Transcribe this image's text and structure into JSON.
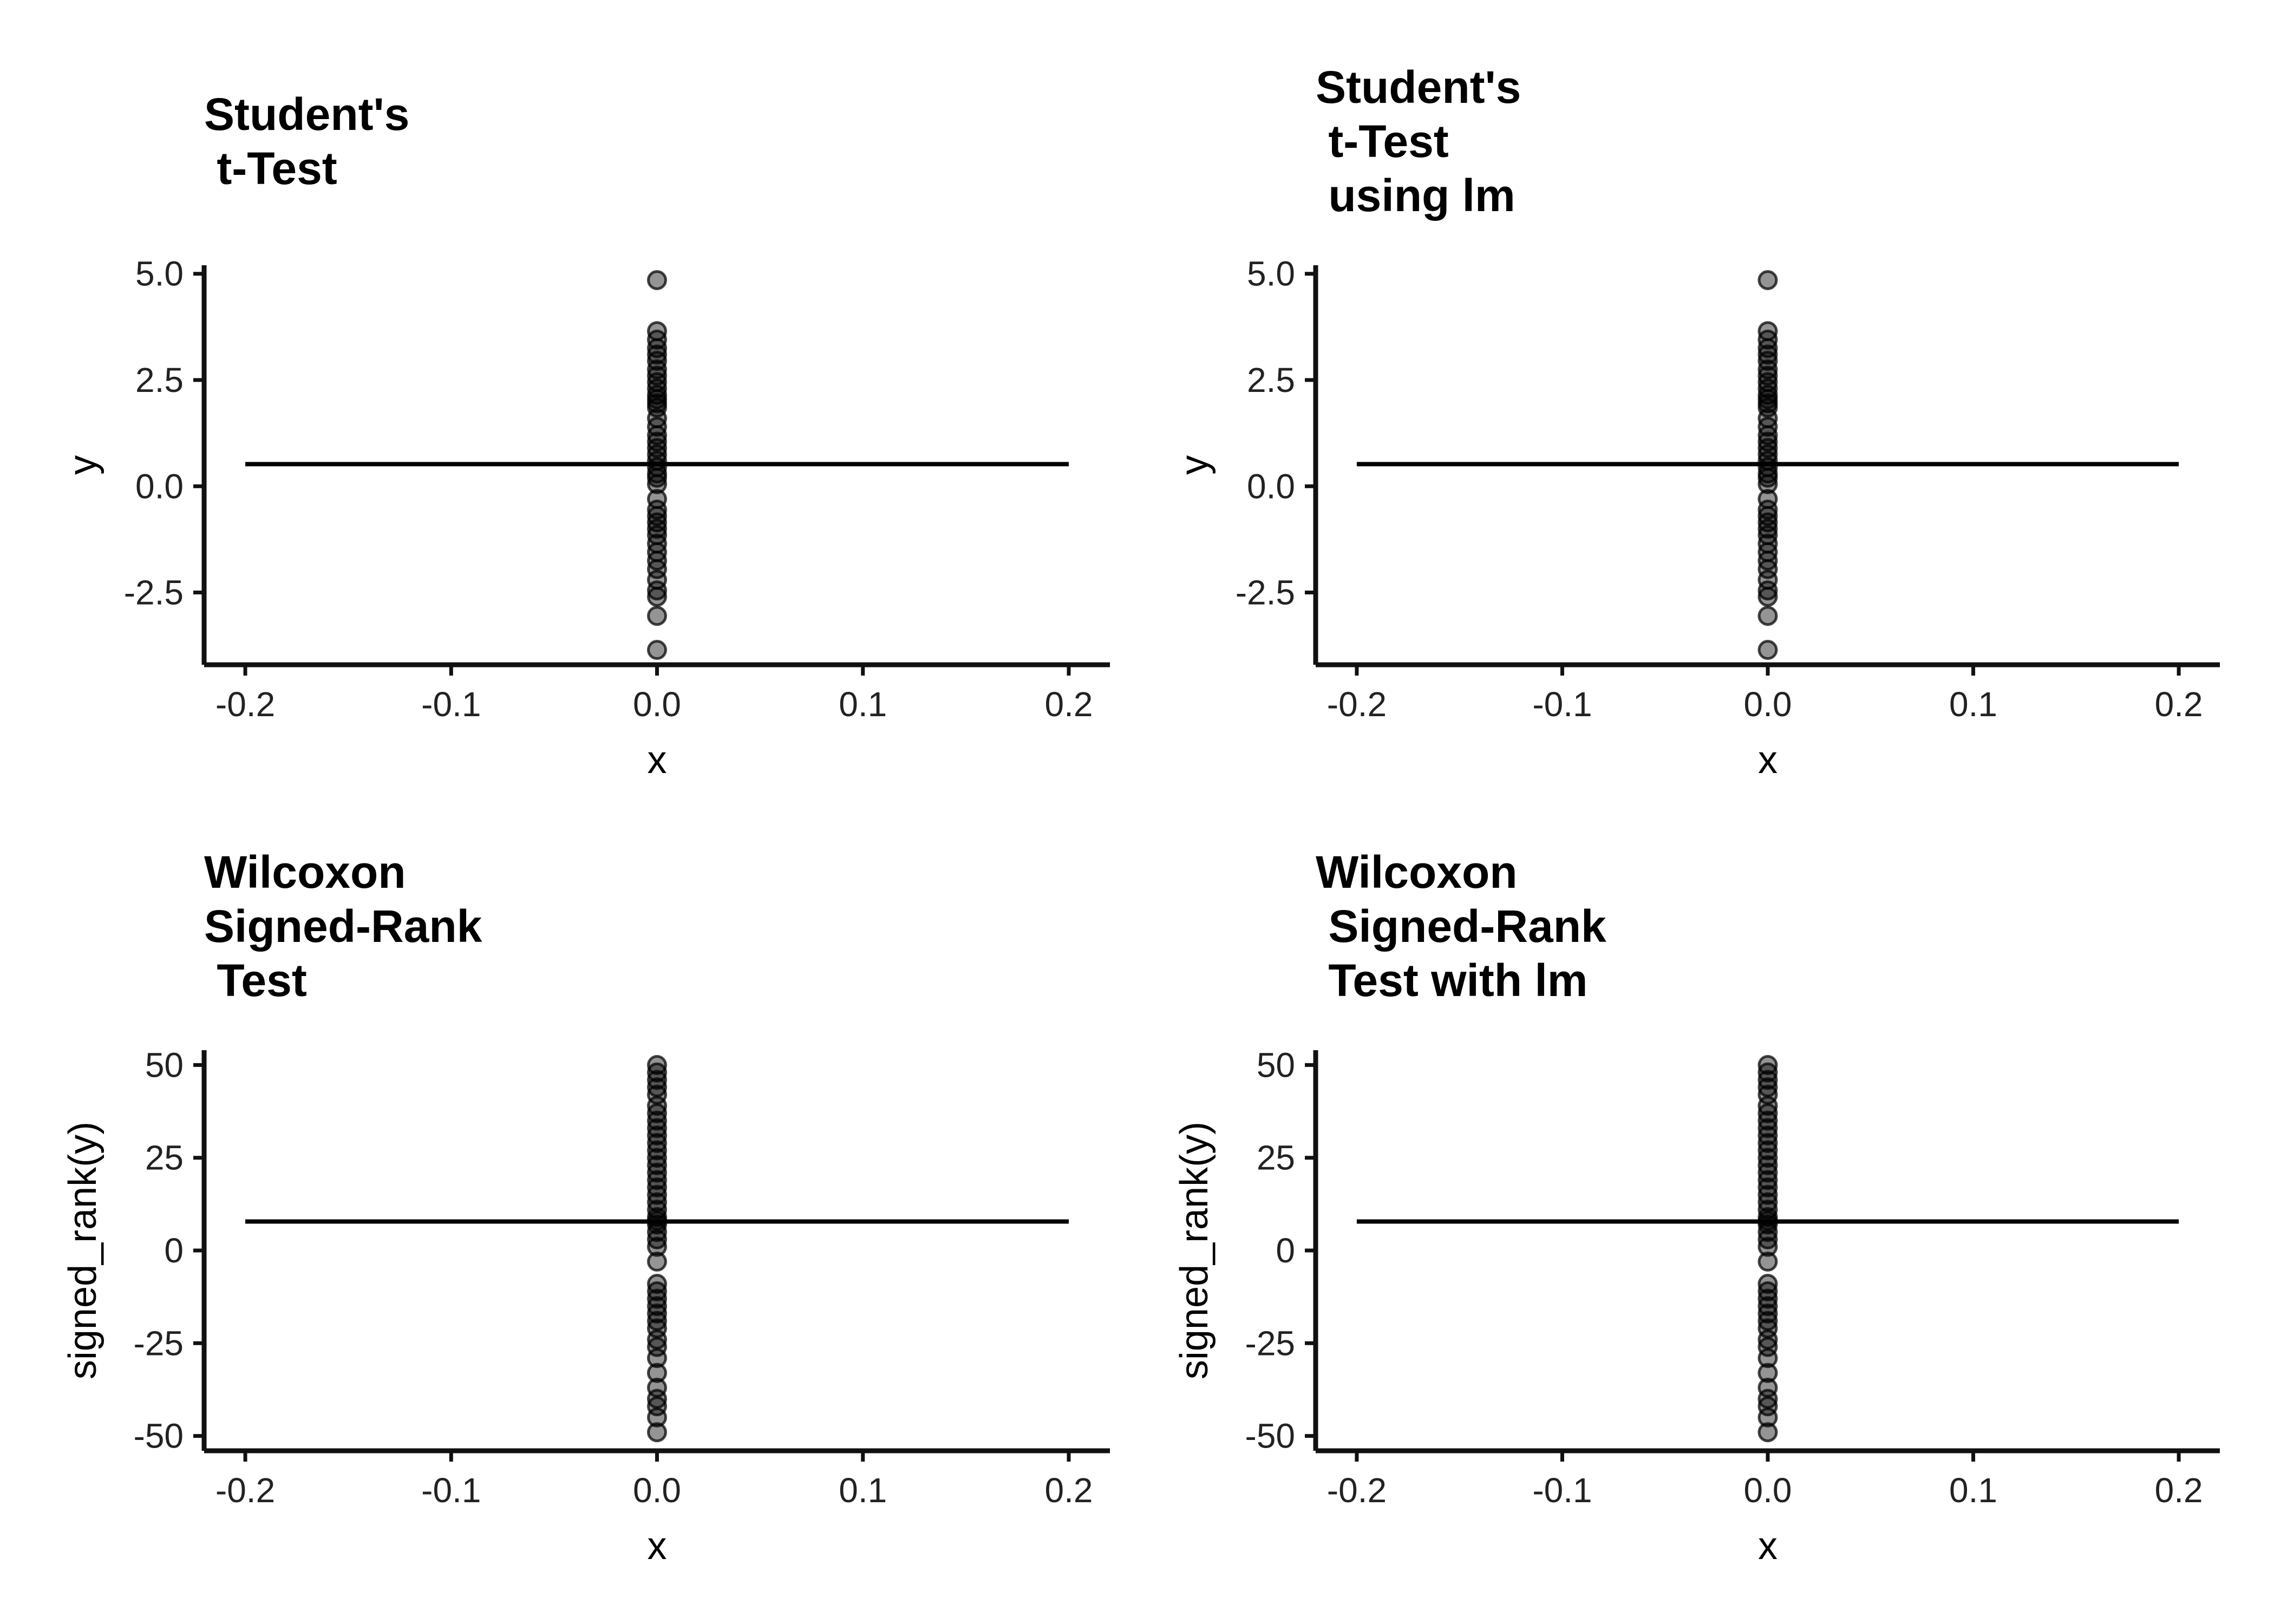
{
  "chart_data": [
    {
      "type": "scatter",
      "title": [
        "Student's",
        " t-Test"
      ],
      "xlabel": "x",
      "ylabel": "y",
      "xlim": [
        -0.22,
        0.22
      ],
      "ylim": [
        -4.2,
        5.2
      ],
      "xticks": [
        -0.2,
        -0.1,
        0.0,
        0.1,
        0.2
      ],
      "xtick_labels": [
        "-0.2",
        "-0.1",
        "0.0",
        "0.1",
        "0.2"
      ],
      "yticks": [
        -2.5,
        0.0,
        2.5,
        5.0
      ],
      "ytick_labels": [
        "-2.5",
        "0.0",
        "2.5",
        "5.0"
      ],
      "points": {
        "x": 0.0,
        "y": [
          4.85,
          3.65,
          3.45,
          3.25,
          3.1,
          2.95,
          2.75,
          2.6,
          2.45,
          2.3,
          2.15,
          2.05,
          1.95,
          1.85,
          1.6,
          1.4,
          1.2,
          1.05,
          0.9,
          0.75,
          0.6,
          0.45,
          0.3,
          0.2,
          0.05,
          -0.3,
          -0.55,
          -0.7,
          -0.85,
          -1.0,
          -1.15,
          -1.35,
          -1.55,
          -1.75,
          -1.95,
          -2.2,
          -2.45,
          -2.6,
          -3.05,
          -3.85
        ]
      },
      "line": {
        "x": [
          -0.2,
          0.2
        ],
        "y": [
          0.52,
          0.52
        ]
      },
      "grid": false
    },
    {
      "type": "scatter",
      "title": [
        "Student's",
        " t-Test",
        " using lm"
      ],
      "xlabel": "x",
      "ylabel": "y",
      "xlim": [
        -0.22,
        0.22
      ],
      "ylim": [
        -4.2,
        5.2
      ],
      "xticks": [
        -0.2,
        -0.1,
        0.0,
        0.1,
        0.2
      ],
      "xtick_labels": [
        "-0.2",
        "-0.1",
        "0.0",
        "0.1",
        "0.2"
      ],
      "yticks": [
        -2.5,
        0.0,
        2.5,
        5.0
      ],
      "ytick_labels": [
        "-2.5",
        "0.0",
        "2.5",
        "5.0"
      ],
      "points": {
        "x": 0.0,
        "y": [
          4.85,
          3.65,
          3.45,
          3.25,
          3.1,
          2.95,
          2.75,
          2.6,
          2.45,
          2.3,
          2.15,
          2.05,
          1.95,
          1.85,
          1.6,
          1.4,
          1.2,
          1.05,
          0.9,
          0.75,
          0.6,
          0.45,
          0.3,
          0.2,
          0.05,
          -0.3,
          -0.55,
          -0.7,
          -0.85,
          -1.0,
          -1.15,
          -1.35,
          -1.55,
          -1.75,
          -1.95,
          -2.2,
          -2.45,
          -2.6,
          -3.05,
          -3.85
        ]
      },
      "line": {
        "x": [
          -0.2,
          0.2
        ],
        "y": [
          0.52,
          0.52
        ]
      },
      "grid": false
    },
    {
      "type": "scatter",
      "title": [
        "Wilcoxon",
        "Signed-Rank",
        " Test"
      ],
      "xlabel": "x",
      "ylabel": "signed_rank(y)",
      "xlim": [
        -0.22,
        0.22
      ],
      "ylim": [
        -54,
        54
      ],
      "xticks": [
        -0.2,
        -0.1,
        0.0,
        0.1,
        0.2
      ],
      "xtick_labels": [
        "-0.2",
        "-0.1",
        "0.0",
        "0.1",
        "0.2"
      ],
      "yticks": [
        -50,
        -25,
        0,
        25,
        50
      ],
      "ytick_labels": [
        "-50",
        "-25",
        "0",
        "25",
        "50"
      ],
      "points": {
        "x": 0.0,
        "y": [
          50,
          48,
          46,
          44,
          42,
          39,
          37,
          35,
          33,
          31,
          29,
          27,
          25,
          23,
          21,
          19,
          17,
          15,
          13,
          11,
          9,
          8,
          7,
          5,
          3,
          1,
          -3,
          -9,
          -11,
          -13,
          -15,
          -17,
          -19,
          -21,
          -24,
          -26,
          -29,
          -33,
          -37,
          -40,
          -42,
          -45,
          -49
        ]
      },
      "line": {
        "x": [
          -0.2,
          0.2
        ],
        "y": [
          7.8,
          7.8
        ]
      },
      "grid": false
    },
    {
      "type": "scatter",
      "title": [
        "Wilcoxon",
        " Signed-Rank",
        " Test with lm"
      ],
      "xlabel": "x",
      "ylabel": "signed_rank(y)",
      "xlim": [
        -0.22,
        0.22
      ],
      "ylim": [
        -54,
        54
      ],
      "xticks": [
        -0.2,
        -0.1,
        0.0,
        0.1,
        0.2
      ],
      "xtick_labels": [
        "-0.2",
        "-0.1",
        "0.0",
        "0.1",
        "0.2"
      ],
      "yticks": [
        -50,
        -25,
        0,
        25,
        50
      ],
      "ytick_labels": [
        "-50",
        "-25",
        "0",
        "25",
        "50"
      ],
      "points": {
        "x": 0.0,
        "y": [
          50,
          48,
          46,
          44,
          42,
          39,
          37,
          35,
          33,
          31,
          29,
          27,
          25,
          23,
          21,
          19,
          17,
          15,
          13,
          11,
          9,
          8,
          7,
          5,
          3,
          1,
          -3,
          -9,
          -11,
          -13,
          -15,
          -17,
          -19,
          -21,
          -24,
          -26,
          -29,
          -33,
          -37,
          -40,
          -42,
          -45,
          -49
        ]
      },
      "line": {
        "x": [
          -0.2,
          0.2
        ],
        "y": [
          7.8,
          7.8
        ]
      },
      "grid": false
    }
  ]
}
